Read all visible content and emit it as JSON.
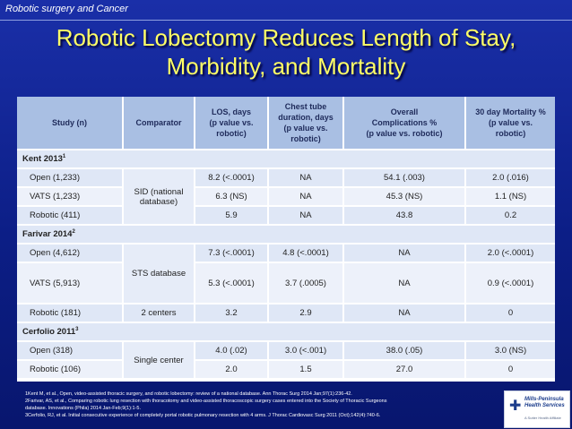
{
  "slide": {
    "section": "Robotic surgery and Cancer",
    "title_line1": "Robotic Lobectomy Reduces Length of Stay,",
    "title_line2": "Morbidity, and Mortality"
  },
  "table": {
    "headers": {
      "study": "Study (n)",
      "comparator": "Comparator",
      "los_a": "LOS, days",
      "los_b": "(p value vs.",
      "los_c": "robotic)",
      "chest_a": "Chest tube",
      "chest_b": "duration, days",
      "chest_c": "(p value vs.",
      "chest_d": "robotic)",
      "comp_a": "Overall",
      "comp_b": "Complications %",
      "comp_c": "(p value vs. robotic)",
      "mort_a": "30 day Mortality %",
      "mort_b": "(p value vs.",
      "mort_c": "robotic)"
    },
    "groups": [
      {
        "label": "Kent 2013",
        "ref": "1"
      },
      {
        "label": "Farivar 2014",
        "ref": "2"
      },
      {
        "label": "Cerfolio 2011",
        "ref": "3"
      }
    ],
    "comparators": {
      "kent": "SID (national database)",
      "farivar": "STS database",
      "farivar_robotic": "2 centers",
      "cerfolio": "Single center"
    },
    "rows": [
      {
        "study": "Open (1,233)",
        "los": "8.2 (<.0001)",
        "chest": "NA",
        "comp": "54.1 (.003)",
        "mort": "2.0 (.016)"
      },
      {
        "study": "VATS (1,233)",
        "los": "6.3 (NS)",
        "chest": "NA",
        "comp": "45.3 (NS)",
        "mort": "1.1 (NS)"
      },
      {
        "study": "Robotic (411)",
        "los": "5.9",
        "chest": "NA",
        "comp": "43.8",
        "mort": "0.2"
      },
      {
        "study": "Open (4,612)",
        "los": "7.3 (<.0001)",
        "chest": "4.8 (<.0001)",
        "comp": "NA",
        "mort": "2.0 (<.0001)"
      },
      {
        "study": "VATS (5,913)",
        "los": "5.3 (<.0001)",
        "chest": "3.7 (.0005)",
        "comp": "NA",
        "mort": "0.9 (<.0001)"
      },
      {
        "study": "Robotic (181)",
        "los": "3.2",
        "chest": "2.9",
        "comp": "NA",
        "mort": "0"
      },
      {
        "study": "Open (318)",
        "los": "4.0 (.02)",
        "chest": "3.0 (<.001)",
        "comp": "38.0 (.05)",
        "mort": "3.0 (NS)"
      },
      {
        "study": "Robotic (106)",
        "los": "2.0",
        "chest": "1.5",
        "comp": "27.0",
        "mort": "0"
      }
    ]
  },
  "references": [
    "1Kent M, et al., Open, video-assisted thoracic surgery, and robotic lobectomy: review of a national database. Ann Thorac Surg 2014 Jan;97(1):236-42.",
    "2Farivar, AS, et al., Comparing robotic lung resection with thoracotomy and video-assisted thoracoscopic surgery cases entered into the Society of Thoracic Surgeons",
    "database. Innovations (Phila) 2014 Jan-Feb;9(1):1-5.",
    "3Cerfolio, RJ, et al. Initial consecutive experience of completely portal robotic pulmonary resection with 4 arms. J Thorac Cardiovasc Surg 2011 (Oct);142(4):740-6."
  ],
  "logo": {
    "name_line1": "Mills-Peninsula",
    "name_line2": "Health Services",
    "tagline": "A Sutter Health Affiliate",
    "icon": "cross-logo-icon"
  },
  "colors": {
    "background": "#0c1e86",
    "title": "#ffff66",
    "header_row": "#a9bfe3",
    "row_fill": "#dfe7f6"
  }
}
